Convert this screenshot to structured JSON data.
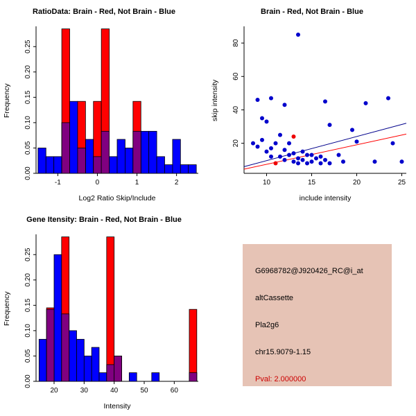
{
  "page": {
    "background": "#FFFFFF"
  },
  "panels": {
    "info_box": {
      "background": "#E6C3B5",
      "lines": [
        {
          "text": "G6968782@J920426_RC@i_at",
          "color": "#000000"
        },
        {
          "text": "altCassette",
          "color": "#000000"
        },
        {
          "text": "Pla2g6",
          "color": "#000000"
        },
        {
          "text": "chr15.9079-1.15",
          "color": "#000000"
        },
        {
          "text": "Pval: 2.000000",
          "color": "#CC0000"
        }
      ]
    }
  },
  "chart_data": [
    {
      "type": "bar",
      "subtype": "overlaid-histogram",
      "title": "RatioData: Brain - Red, Not Brain - Blue",
      "xlabel": "Log2 Ratio Skip/Include",
      "ylabel": "Frequency",
      "xlim": [
        -1.55,
        2.55
      ],
      "ylim": [
        0,
        0.29
      ],
      "grid": false,
      "xticks": [
        {
          "v": -1,
          "label": "-1"
        },
        {
          "v": 0,
          "label": "0"
        },
        {
          "v": 1,
          "label": "1"
        },
        {
          "v": 2,
          "label": "2"
        }
      ],
      "yticks": [
        {
          "v": 0,
          "label": "0.00"
        },
        {
          "v": 0.05,
          "label": "0.05"
        },
        {
          "v": 0.1,
          "label": "0.10"
        },
        {
          "v": 0.15,
          "label": "0.15"
        },
        {
          "v": 0.2,
          "label": "0.20"
        },
        {
          "v": 0.25,
          "label": "0.25"
        }
      ],
      "bin_width": 0.2,
      "overlap_color": "#800080",
      "series": [
        {
          "name": "Not Brain",
          "color": "#0000FF",
          "bins": [
            [
              -1.5,
              0.05
            ],
            [
              -1.3,
              0.033
            ],
            [
              -1.1,
              0.033
            ],
            [
              -0.9,
              0.1
            ],
            [
              -0.7,
              0.142
            ],
            [
              -0.5,
              0.05
            ],
            [
              -0.3,
              0.067
            ],
            [
              -0.1,
              0.033
            ],
            [
              0.1,
              0.083
            ],
            [
              0.3,
              0.033
            ],
            [
              0.5,
              0.067
            ],
            [
              0.7,
              0.05
            ],
            [
              0.9,
              0.083
            ],
            [
              1.1,
              0.083
            ],
            [
              1.3,
              0.083
            ],
            [
              1.5,
              0.033
            ],
            [
              1.7,
              0.017
            ],
            [
              1.9,
              0.067
            ],
            [
              2.1,
              0.017
            ],
            [
              2.3,
              0.017
            ]
          ]
        },
        {
          "name": "Brain",
          "color": "#FF0000",
          "bins": [
            [
              -0.9,
              0.285
            ],
            [
              -0.5,
              0.142
            ],
            [
              -0.1,
              0.142
            ],
            [
              0.1,
              0.285
            ],
            [
              0.9,
              0.142
            ]
          ]
        }
      ]
    },
    {
      "type": "scatter",
      "title": "Brain - Red, Not Brain - Blue",
      "xlabel": "include intensity",
      "ylabel": "skip intensity",
      "xlim": [
        7.5,
        25.5
      ],
      "ylim": [
        2,
        90
      ],
      "grid": false,
      "xticks": [
        {
          "v": 10,
          "label": "10"
        },
        {
          "v": 15,
          "label": "15"
        },
        {
          "v": 20,
          "label": "20"
        },
        {
          "v": 25,
          "label": "25"
        }
      ],
      "yticks": [
        {
          "v": 20,
          "label": "20"
        },
        {
          "v": 40,
          "label": "40"
        },
        {
          "v": 60,
          "label": "60"
        },
        {
          "v": 80,
          "label": "80"
        }
      ],
      "series": [
        {
          "name": "Not Brain",
          "color": "#0000CC",
          "points": [
            [
              13.5,
              85
            ],
            [
              9,
              46
            ],
            [
              10.5,
              47
            ],
            [
              12,
              43
            ],
            [
              16.5,
              45
            ],
            [
              21,
              44
            ],
            [
              23.5,
              47
            ],
            [
              9.5,
              35
            ],
            [
              10,
              33
            ],
            [
              17,
              31
            ],
            [
              19.5,
              28
            ],
            [
              11.5,
              25
            ],
            [
              8.5,
              20
            ],
            [
              9,
              18
            ],
            [
              9.5,
              22
            ],
            [
              10,
              15
            ],
            [
              10.5,
              17
            ],
            [
              10.5,
              12
            ],
            [
              11,
              20
            ],
            [
              11.5,
              12
            ],
            [
              12,
              16
            ],
            [
              12,
              10
            ],
            [
              12.5,
              20
            ],
            [
              12.5,
              13
            ],
            [
              13,
              9
            ],
            [
              13,
              14
            ],
            [
              13.5,
              11
            ],
            [
              13.5,
              8
            ],
            [
              14,
              15
            ],
            [
              14,
              10
            ],
            [
              14.5,
              13
            ],
            [
              14.5,
              8
            ],
            [
              15,
              9
            ],
            [
              15,
              13
            ],
            [
              15.5,
              11
            ],
            [
              16,
              8
            ],
            [
              16,
              12
            ],
            [
              16.5,
              10
            ],
            [
              17,
              8
            ],
            [
              18,
              13
            ],
            [
              18.5,
              9
            ],
            [
              20,
              21
            ],
            [
              22,
              9
            ],
            [
              24,
              20
            ],
            [
              25,
              9
            ]
          ]
        },
        {
          "name": "Brain",
          "color": "#EE0000",
          "points": [
            [
              11,
              8
            ],
            [
              13,
              24
            ]
          ]
        }
      ],
      "lines": [
        {
          "name": "not-brain-fit",
          "color": "#00008B",
          "x1": 7.5,
          "y1": 6,
          "x2": 25.5,
          "y2": 32
        },
        {
          "name": "brain-fit",
          "color": "#FF0000",
          "x1": 7.5,
          "y1": 4.5,
          "x2": 25.5,
          "y2": 25.5
        }
      ]
    },
    {
      "type": "bar",
      "subtype": "overlaid-histogram",
      "title": "Gene Itensity: Brain - Red, Not Brain - Blue",
      "xlabel": "Intensity",
      "ylabel": "Frequency",
      "xlim": [
        14,
        68
      ],
      "ylim": [
        0,
        0.29
      ],
      "grid": false,
      "xticks": [
        {
          "v": 20,
          "label": "20"
        },
        {
          "v": 30,
          "label": "30"
        },
        {
          "v": 40,
          "label": "40"
        },
        {
          "v": 50,
          "label": "50"
        },
        {
          "v": 60,
          "label": "60"
        }
      ],
      "yticks": [
        {
          "v": 0,
          "label": "0.00"
        },
        {
          "v": 0.05,
          "label": "0.05"
        },
        {
          "v": 0.1,
          "label": "0.10"
        },
        {
          "v": 0.15,
          "label": "0.15"
        },
        {
          "v": 0.2,
          "label": "0.20"
        },
        {
          "v": 0.25,
          "label": "0.25"
        }
      ],
      "bin_width": 2.5,
      "overlap_color": "#800080",
      "series": [
        {
          "name": "Not Brain",
          "color": "#0000FF",
          "bins": [
            [
              15,
              0.083
            ],
            [
              17.5,
              0.142
            ],
            [
              20,
              0.25
            ],
            [
              22.5,
              0.133
            ],
            [
              25,
              0.1
            ],
            [
              27.5,
              0.083
            ],
            [
              30,
              0.05
            ],
            [
              32.5,
              0.067
            ],
            [
              35,
              0.017
            ],
            [
              37.5,
              0.033
            ],
            [
              40,
              0.05
            ],
            [
              45,
              0.017
            ],
            [
              52.5,
              0.017
            ],
            [
              65,
              0.017
            ]
          ]
        },
        {
          "name": "Brain",
          "color": "#FF0000",
          "bins": [
            [
              17.5,
              0.145
            ],
            [
              22.5,
              0.285
            ],
            [
              37.5,
              0.285
            ],
            [
              40,
              0.05
            ],
            [
              65,
              0.142
            ]
          ]
        }
      ]
    }
  ]
}
